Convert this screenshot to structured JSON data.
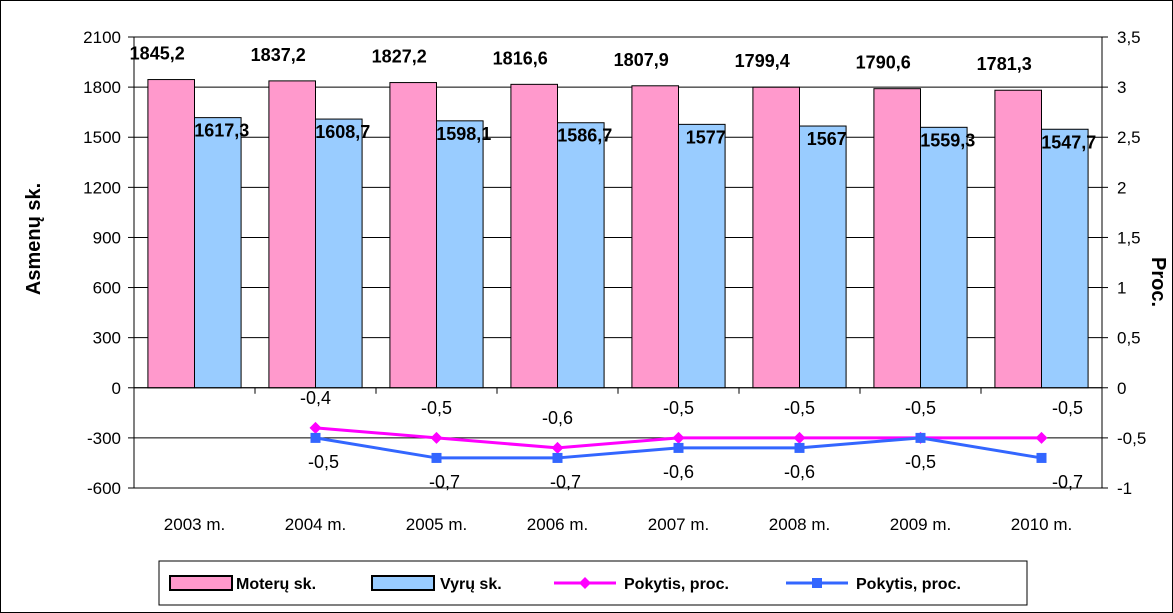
{
  "chart_data": {
    "type": "bar",
    "categories": [
      "2003 m.",
      "2004 m.",
      "2005 m.",
      "2006 m.",
      "2007 m.",
      "2008 m.",
      "2009 m.",
      "2010 m."
    ],
    "ylabel": "Asmenų sk.",
    "y2label": "Proc.",
    "ylim": [
      -600,
      2100
    ],
    "y2lim": [
      -1,
      3.5
    ],
    "yticks": [
      "-600",
      "-300",
      "0",
      "300",
      "600",
      "900",
      "1200",
      "1500",
      "1800",
      "2100"
    ],
    "y2ticks": [
      "-1",
      "-0,5",
      "0",
      "0,5",
      "1",
      "1,5",
      "2",
      "2,5",
      "3",
      "3,5"
    ],
    "grid": true,
    "legend_position": "bottom",
    "series": [
      {
        "name": "Moterų sk.",
        "kind": "bar",
        "axis": "left",
        "color": "#ff99cc",
        "values": [
          1845.2,
          1837.2,
          1827.2,
          1816.6,
          1807.9,
          1799.4,
          1790.6,
          1781.3
        ],
        "labels": [
          "1845,2",
          "1837,2",
          "1827,2",
          "1816,6",
          "1807,9",
          "1799,4",
          "1790,6",
          "1781,3"
        ]
      },
      {
        "name": "Vyrų sk.",
        "kind": "bar",
        "axis": "left",
        "color": "#99ccff",
        "values": [
          1617.3,
          1608.7,
          1598.1,
          1586.7,
          1577,
          1567,
          1559.3,
          1547.7
        ],
        "labels": [
          "1617,3",
          "1608,7",
          "1598,1",
          "1586,7",
          "1577",
          "1567",
          "1559,3",
          "1547,7"
        ]
      },
      {
        "name": "Pokytis, proc.",
        "kind": "line",
        "axis": "right",
        "color": "#ff00ff",
        "marker": "diamond",
        "values": [
          null,
          -0.4,
          -0.5,
          -0.6,
          -0.5,
          -0.5,
          -0.5,
          -0.5
        ],
        "labels": [
          "",
          "-0,4",
          "-0,5",
          "-0,6",
          "-0,5",
          "-0,5",
          "-0,5",
          "-0,5"
        ]
      },
      {
        "name": "Pokytis, proc.",
        "kind": "line",
        "axis": "right",
        "color": "#3366ff",
        "marker": "square",
        "values": [
          null,
          -0.5,
          -0.7,
          -0.7,
          -0.6,
          -0.6,
          -0.5,
          -0.7
        ],
        "labels": [
          "",
          "-0,5",
          "-0,7",
          "-0,7",
          "-0,6",
          "-0,6",
          "-0,5",
          "-0,7"
        ]
      }
    ]
  }
}
